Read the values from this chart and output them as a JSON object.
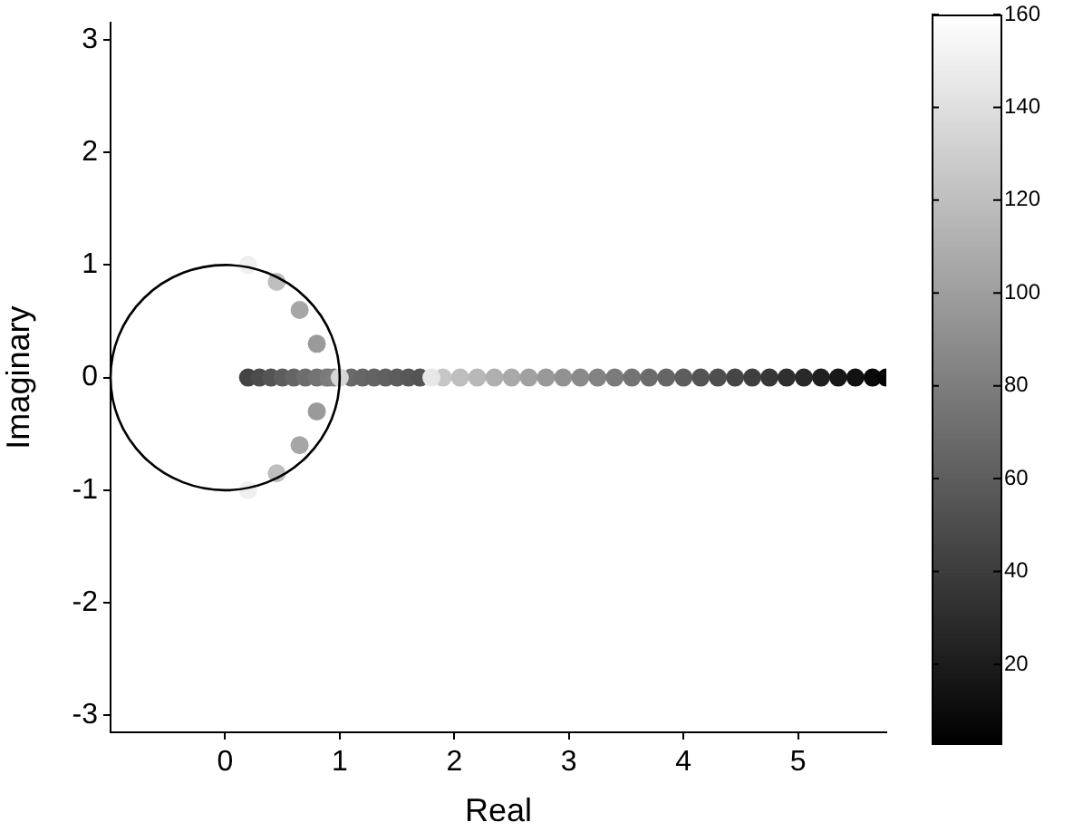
{
  "chart_data": {
    "type": "scatter",
    "xlabel": "Real",
    "ylabel": "Imaginary",
    "xlim": [
      -1,
      5.77
    ],
    "ylim": [
      -3.15,
      3.15
    ],
    "xticks": [
      0,
      1,
      2,
      3,
      4,
      5
    ],
    "yticks": [
      -3,
      -2,
      -1,
      0,
      1,
      2,
      3
    ],
    "clim": [
      3,
      160
    ],
    "cticks": [
      20,
      40,
      60,
      80,
      100,
      120,
      140,
      160
    ],
    "grid": false,
    "legend": false,
    "marker": "circle",
    "series": [
      {
        "type": "scatter",
        "x": [
          0.2,
          0.45,
          0.65,
          0.8,
          0.88,
          0.8,
          0.65,
          0.45,
          0.2,
          0.2,
          0.3,
          0.4,
          0.5,
          0.6,
          0.7,
          0.8,
          0.9,
          0.95,
          1.1,
          1.2,
          1.3,
          1.4,
          1.5,
          1.6,
          1.7,
          1.9,
          2.05,
          2.2,
          2.35,
          2.5,
          2.65,
          2.8,
          2.95,
          3.1,
          3.25,
          3.4,
          3.55,
          3.7,
          3.85,
          4.0,
          4.15,
          4.3,
          4.45,
          4.6,
          4.75,
          4.9,
          5.05,
          5.2,
          5.35,
          5.5,
          5.65,
          5.77,
          1.0,
          1.8
        ],
        "values": [
          1,
          0.85,
          0.6,
          0.3,
          0,
          -0.3,
          -0.6,
          -0.85,
          -1,
          0,
          0,
          0,
          0,
          0,
          0,
          0,
          0,
          0,
          0,
          0,
          0,
          0,
          0,
          0,
          0,
          0,
          0,
          0,
          0,
          0,
          0,
          0,
          0,
          0,
          0,
          0,
          0,
          0,
          0,
          0,
          0,
          0,
          0,
          0,
          0,
          0,
          0,
          0,
          0,
          0,
          0,
          0,
          0,
          0
        ],
        "cvalues": [
          150,
          120,
          105,
          98,
          95,
          98,
          105,
          120,
          150,
          45,
          50,
          55,
          60,
          65,
          70,
          74,
          78,
          80,
          68,
          66,
          64,
          62,
          60,
          57,
          55,
          125,
          120,
          116,
          111,
          107,
          102,
          97,
          93,
          88,
          83,
          79,
          74,
          69,
          65,
          60,
          55,
          51,
          46,
          42,
          37,
          32,
          28,
          23,
          18,
          14,
          9,
          6,
          135,
          145
        ]
      }
    ]
  }
}
